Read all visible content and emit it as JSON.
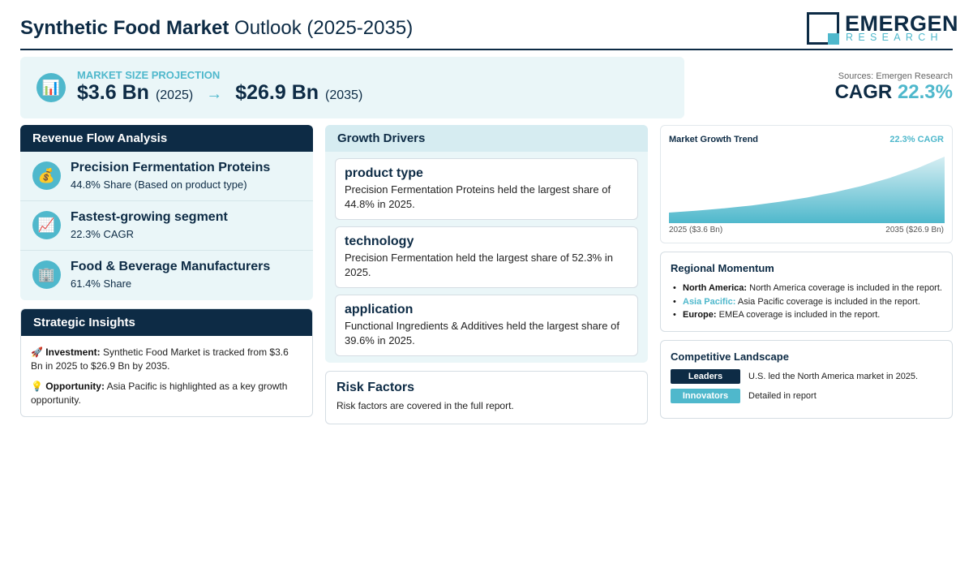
{
  "header": {
    "title_bold": "Synthetic Food Market",
    "title_rest": " Outlook (2025-2035)",
    "logo_main": "EMERGEN",
    "logo_sub": "RESEARCH"
  },
  "projection": {
    "icon": "bar-chart-icon",
    "label": "MARKET SIZE PROJECTION",
    "start_value": "$3.6 Bn",
    "start_year": "(2025)",
    "arrow": "→",
    "end_value": "$26.9 Bn",
    "end_year": "(2035)"
  },
  "summary": {
    "sources": "Sources: Emergen Research",
    "cagr_label": "CAGR",
    "cagr_value": "22.3%"
  },
  "revenue_flow": {
    "title": "Revenue Flow Analysis",
    "items": [
      {
        "icon": "money-bag-icon",
        "glyph": "💰",
        "title": "Precision Fermentation Proteins",
        "sub": "44.8% Share (Based on product type)"
      },
      {
        "icon": "trend-up-icon",
        "glyph": "📈",
        "title": "Fastest-growing segment",
        "sub": "22.3% CAGR"
      },
      {
        "icon": "building-icon",
        "glyph": "🏢",
        "title": "Food & Beverage Manufacturers",
        "sub": "61.4% Share"
      }
    ]
  },
  "strategic": {
    "title": "Strategic Insights",
    "items": [
      {
        "icon": "rocket-icon",
        "glyph": "🚀",
        "label": "Investment:",
        "text": " Synthetic Food Market is tracked from $3.6 Bn in 2025 to $26.9 Bn by 2035."
      },
      {
        "icon": "lightbulb-icon",
        "glyph": "💡",
        "label": "Opportunity:",
        "text": " Asia Pacific is highlighted as a key growth opportunity."
      }
    ]
  },
  "growth_drivers": {
    "title": "Growth Drivers",
    "items": [
      {
        "title": "product type",
        "text": "Precision Fermentation Proteins held the largest share of 44.8% in 2025."
      },
      {
        "title": "technology",
        "text": "Precision Fermentation held the largest share of 52.3% in 2025."
      },
      {
        "title": "application",
        "text": "Functional Ingredients & Additives held the largest share of 39.6% in 2025."
      }
    ]
  },
  "risk": {
    "title": "Risk Factors",
    "text": "Risk factors are covered in the full report."
  },
  "chart_data": {
    "type": "area",
    "title": "Market Growth Trend",
    "annotation": "22.3% CAGR",
    "x": [
      2025,
      2035
    ],
    "start_label": "2025 ($3.6 Bn)",
    "end_label": "2035 ($26.9 Bn)",
    "series": [
      {
        "values": [
          3.6,
          26.9
        ]
      }
    ],
    "colors": {
      "top": "#d6eef3",
      "bottom": "#4fb8cc"
    }
  },
  "regional": {
    "title": "Regional Momentum",
    "items": [
      {
        "region": "North America:",
        "text": " North America coverage is included in the report.",
        "accent": false
      },
      {
        "region": "Asia Pacific:",
        "text": " Asia Pacific coverage is included in the report.",
        "accent": true
      },
      {
        "region": "Europe:",
        "text": " EMEA coverage is included in the report.",
        "accent": false
      }
    ]
  },
  "competitive": {
    "title": "Competitive Landscape",
    "rows": [
      {
        "badge": "Leaders",
        "text": "U.S. led the North America market in 2025."
      },
      {
        "badge": "Innovators",
        "text": "Detailed in report"
      }
    ]
  },
  "colors": {
    "navy": "#0d2b45",
    "accent": "#4fb8cc",
    "panel": "#eaf6f8"
  }
}
